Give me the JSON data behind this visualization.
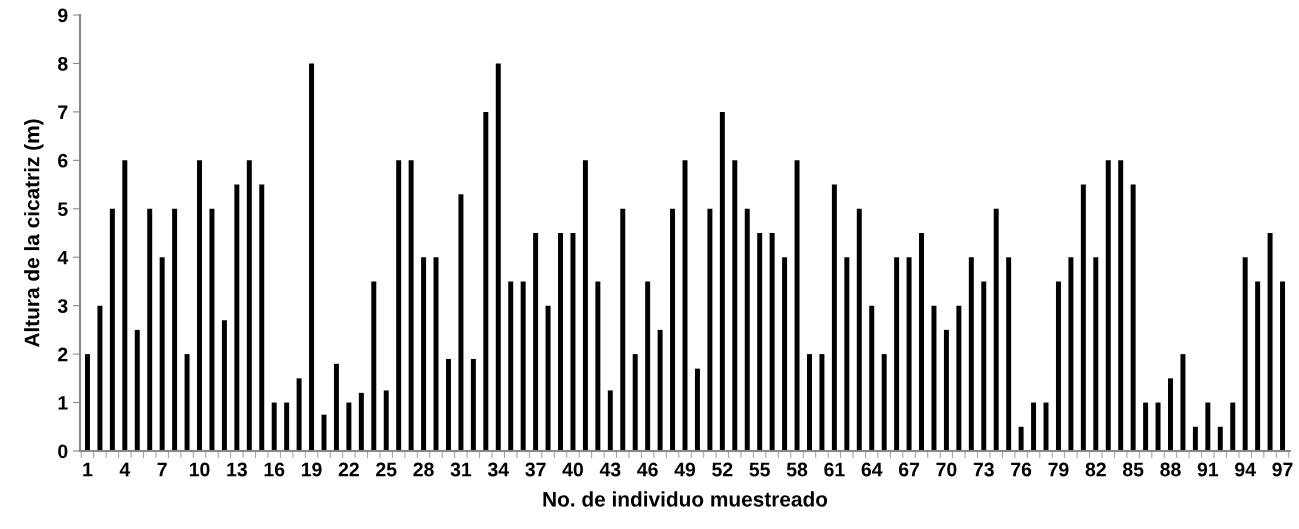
{
  "chart_data": {
    "type": "bar",
    "xlabel": "No. de individuo muestreado",
    "ylabel": "Altura de la cicatriz (m)",
    "categories": [
      "1",
      null,
      null,
      "4",
      null,
      null,
      "7",
      null,
      null,
      "10",
      null,
      null,
      "13",
      null,
      null,
      "16",
      null,
      null,
      "19",
      null,
      null,
      "22",
      null,
      null,
      "25",
      null,
      null,
      "28",
      null,
      null,
      "31",
      null,
      null,
      "34",
      null,
      null,
      "37",
      null,
      null,
      "40",
      null,
      null,
      "43",
      null,
      null,
      "46",
      null,
      null,
      "49",
      null,
      null,
      "52",
      null,
      null,
      "55",
      null,
      null,
      "58",
      null,
      null,
      "61",
      null,
      null,
      "64",
      null,
      null,
      "67",
      null,
      null,
      "70",
      null,
      null,
      "73",
      null,
      null,
      "76",
      null,
      null,
      "79",
      null,
      null,
      "82",
      null,
      null,
      "85",
      null,
      null,
      "88",
      null,
      null,
      "91",
      null,
      null,
      "94",
      null,
      null,
      "97"
    ],
    "values": [
      2,
      3,
      5,
      6,
      2.5,
      5,
      4,
      5,
      2,
      6,
      5,
      2.7,
      5.5,
      6,
      5.5,
      1,
      1,
      1.5,
      8,
      0.75,
      1.8,
      1,
      1.2,
      3.5,
      1.25,
      6,
      6,
      4,
      4,
      1.9,
      5.3,
      1.9,
      7,
      8,
      3.5,
      3.5,
      4.5,
      3,
      4.5,
      4.5,
      6,
      3.5,
      1.25,
      5,
      2,
      3.5,
      2.5,
      5,
      6,
      1.7,
      5,
      7,
      6,
      5,
      4.5,
      4.5,
      4,
      6,
      2,
      2,
      5.5,
      4,
      5,
      3,
      2,
      4,
      4,
      4.5,
      3,
      2.5,
      3,
      4,
      3.5,
      5,
      4,
      0.5,
      1,
      1,
      3.5,
      4,
      5.5,
      4,
      6,
      6,
      5.5,
      1,
      1,
      1.5,
      2,
      0.5,
      1,
      0.5,
      1,
      4,
      3.5,
      4.5,
      3.5
    ],
    "color": "#000000",
    "ylim": [
      0,
      9
    ],
    "yticks": [
      0,
      1,
      2,
      3,
      4,
      5,
      6,
      7,
      8,
      9
    ],
    "grid": false,
    "legend": false
  }
}
